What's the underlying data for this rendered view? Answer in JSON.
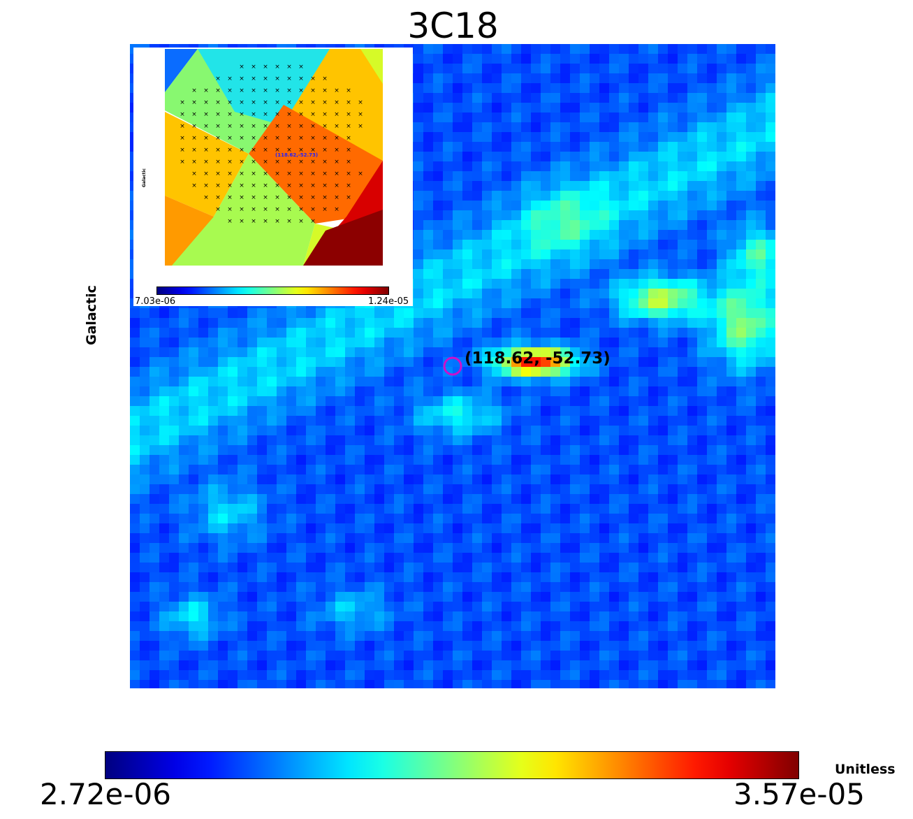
{
  "chart_data": {
    "type": "heatmap",
    "title": "3C18",
    "ylabel": "Galactic",
    "colormap": "jet",
    "colorbar": {
      "min_label": "2.72e-06",
      "max_label": "3.57e-05",
      "unit": "Unitless"
    },
    "marker": {
      "label": "(118.62, -52.73)",
      "color": "#cc10cc"
    },
    "inset": {
      "ylabel": "Galactic",
      "marker_label": "(118.62,-52.73)",
      "colorbar_min": "7.03e-06",
      "colorbar_max": "1.24e-05",
      "regions": [
        {
          "value": 0.32,
          "color": "#0a6cff"
        },
        {
          "value": 0.48,
          "color": "#22e4e8"
        },
        {
          "value": 0.6,
          "color": "#88f870"
        },
        {
          "value": 0.72,
          "color": "#a8fa50"
        },
        {
          "value": 0.78,
          "color": "#d6fa28"
        },
        {
          "value": 0.84,
          "color": "#ffc400"
        },
        {
          "value": 0.86,
          "color": "#ff9a00"
        },
        {
          "value": 0.9,
          "color": "#ff6a00"
        },
        {
          "value": 0.96,
          "color": "#d80000"
        },
        {
          "value": 1.0,
          "color": "#8c0000"
        }
      ]
    }
  }
}
